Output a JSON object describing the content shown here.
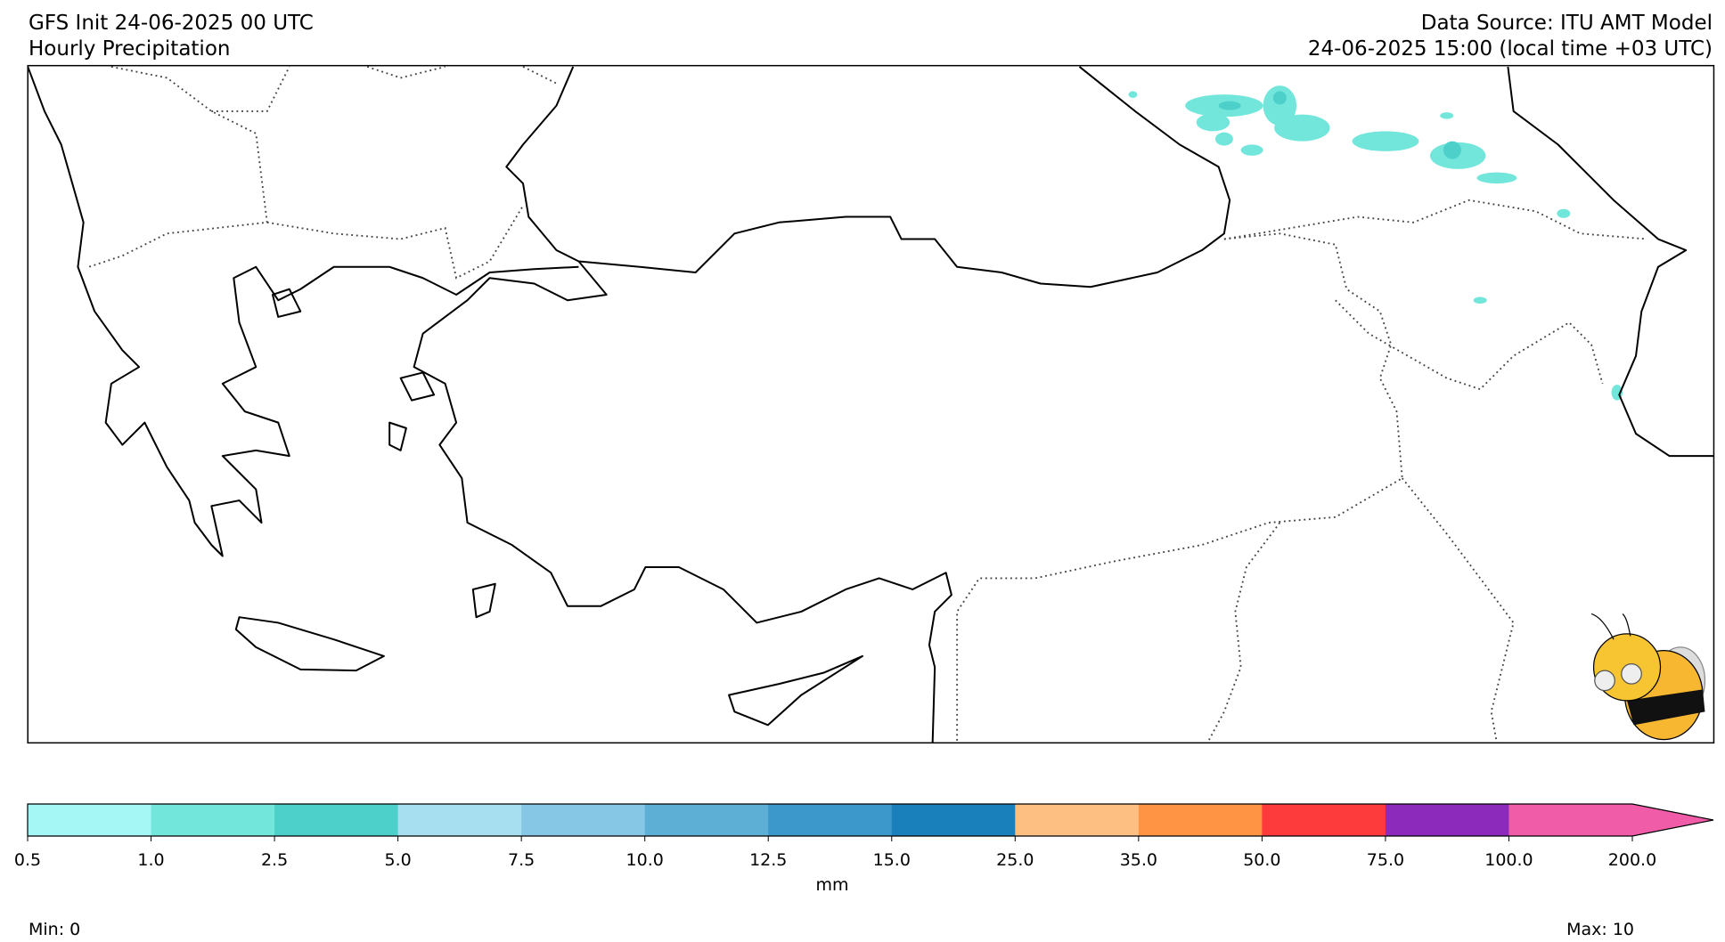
{
  "header": {
    "left_title": "GFS Init 24-06-2025 00 UTC",
    "left_subtitle": "Hourly Precipitation",
    "right_title": "Data Source: ITU AMT Model",
    "right_subtitle": "24-06-2025 15:00 (local time +03 UTC)"
  },
  "colorbar": {
    "ticks": [
      0.5,
      {
        "value": 1,
        "label": "1.0"
      },
      2.5,
      {
        "value": 5,
        "label": "5.0"
      },
      7.5,
      {
        "value": 10,
        "label": "10.0"
      },
      12.5,
      {
        "value": 15,
        "label": "15.0"
      },
      {
        "value": 25,
        "label": "25.0"
      },
      {
        "value": 35,
        "label": "35.0"
      },
      {
        "value": 50,
        "label": "50.0"
      },
      {
        "value": 75,
        "label": "75.0"
      },
      {
        "value": 100,
        "label": "100.0"
      },
      {
        "value": 200,
        "label": "200.0"
      }
    ],
    "colors": [
      "#a4f7f4",
      "#73e6dc",
      "#4dd0c9",
      "#a7def0",
      "#85c7e4",
      "#5eafd6",
      "#3c97cb",
      "#1a80bb",
      "#febf83",
      "#fe9444",
      "#fd3a3c",
      "#8c2abb",
      "#f05ca8"
    ],
    "unit": "mm",
    "extend": "max"
  },
  "footer": {
    "min": "Min: 0",
    "max": "Max: 10"
  }
}
